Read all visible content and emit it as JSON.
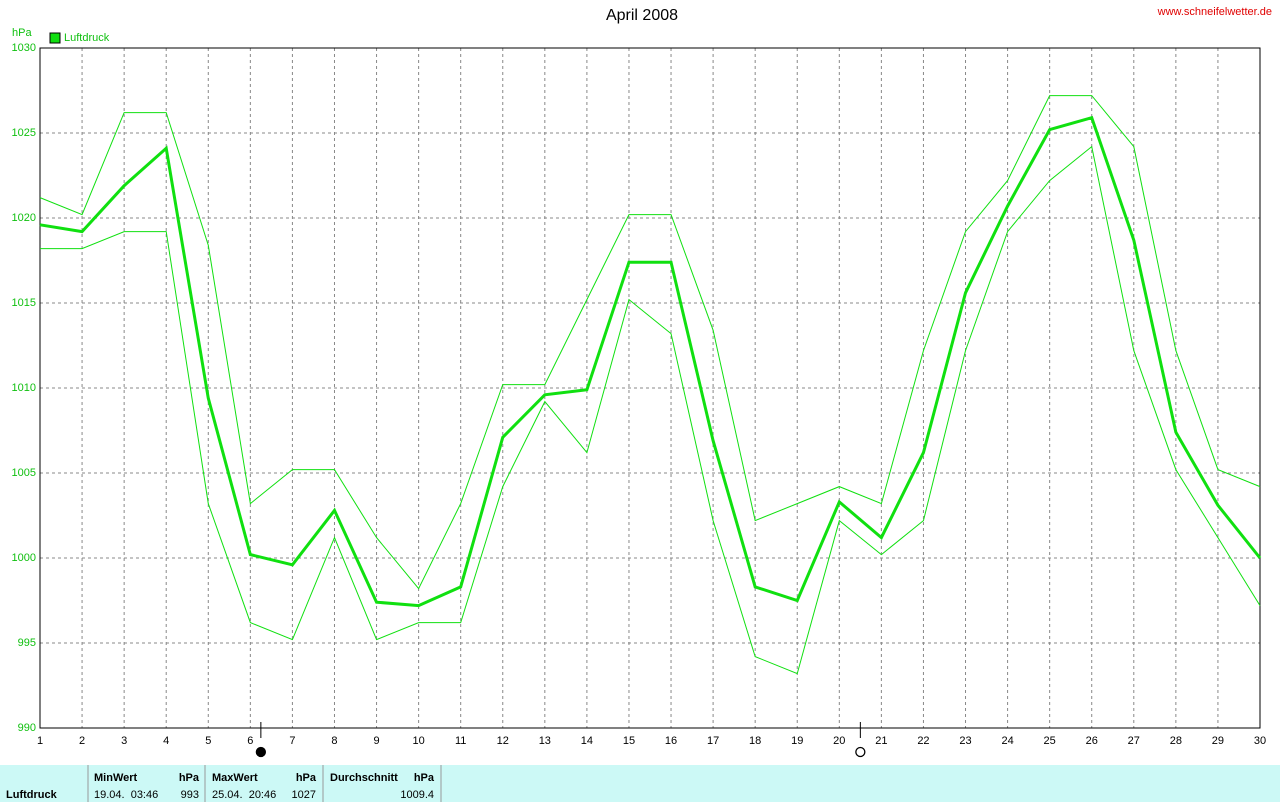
{
  "chart_data": {
    "type": "line",
    "title": "April 2008",
    "source": "www.schneifelwetter.de",
    "y_label": "hPa",
    "x": [
      1,
      2,
      3,
      4,
      5,
      6,
      7,
      8,
      9,
      10,
      11,
      12,
      13,
      14,
      15,
      16,
      17,
      18,
      19,
      20,
      21,
      22,
      23,
      24,
      25,
      26,
      27,
      28,
      29,
      30
    ],
    "xlim": [
      1,
      30
    ],
    "xticks": [
      1,
      2,
      3,
      4,
      5,
      6,
      7,
      8,
      9,
      10,
      11,
      12,
      13,
      14,
      15,
      16,
      17,
      18,
      19,
      20,
      21,
      22,
      23,
      24,
      25,
      26,
      27,
      28,
      29,
      30
    ],
    "ylim": [
      990,
      1030
    ],
    "yticks": [
      990,
      995,
      1000,
      1005,
      1010,
      1015,
      1020,
      1025,
      1030
    ],
    "grid": true,
    "legend": "top-left",
    "series": [
      {
        "name": "Luftdruck",
        "color": "#10e010",
        "values": [
          1019.6,
          1019.2,
          1021.9,
          1024.1,
          1009.4,
          1000.2,
          999.6,
          1002.8,
          997.4,
          997.2,
          998.3,
          1007.1,
          1009.6,
          1009.9,
          1017.4,
          1017.4,
          1006.9,
          998.3,
          997.5,
          1003.3,
          1001.2,
          1006.2,
          1015.6,
          1020.7,
          1025.2,
          1025.9,
          1018.7,
          1007.4,
          1003.1,
          1000.0
        ]
      },
      {
        "color": "#10e010",
        "values": [
          1021.2,
          1020.2,
          1026.2,
          1026.2,
          1018.4,
          1003.2,
          1005.2,
          1005.2,
          1001.2,
          998.2,
          1003.2,
          1010.2,
          1010.2,
          1015.2,
          1020.2,
          1020.2,
          1013.4,
          1002.2,
          1003.2,
          1004.2,
          1003.2,
          1012.2,
          1019.2,
          1022.2,
          1027.2,
          1027.2,
          1024.2,
          1012.2,
          1005.2,
          1004.2
        ]
      },
      {
        "color": "#10e010",
        "values": [
          1018.2,
          1018.2,
          1019.2,
          1019.2,
          1003.2,
          996.2,
          995.2,
          1001.2,
          995.2,
          996.2,
          996.2,
          1004.2,
          1009.2,
          1006.2,
          1015.2,
          1013.2,
          1002.2,
          994.2,
          993.2,
          1002.2,
          1000.2,
          1002.2,
          1012.2,
          1019.2,
          1022.2,
          1024.2,
          1012.2,
          1005.2,
          1001.2,
          997.2
        ]
      }
    ],
    "moon_markers": [
      {
        "x": 6.25,
        "filled": true
      },
      {
        "x": 20.5,
        "filled": false
      }
    ]
  },
  "summary": {
    "label": "Luftdruck",
    "min": {
      "header": "MinWert",
      "unit": "hPa",
      "time": "19.04.  03:46",
      "value": "993"
    },
    "max": {
      "header": "MaxWert",
      "unit": "hPa",
      "time": "25.04.  20:46",
      "value": "1027"
    },
    "avg": {
      "header": "Durchschnitt",
      "unit": "hPa",
      "value": "1009.4"
    }
  }
}
